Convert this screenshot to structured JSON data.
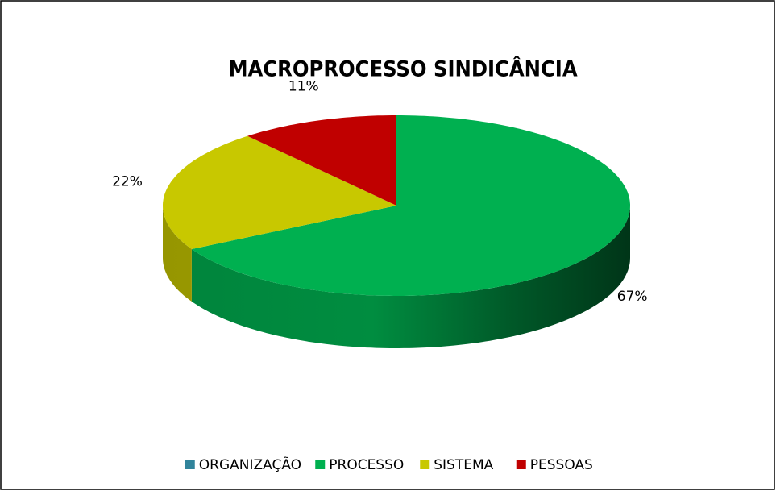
{
  "chart_data": {
    "type": "pie",
    "title": "MACROPROCESSO SINDICÂNCIA",
    "categories": [
      "ORGANIZAÇÃO",
      "PROCESSO",
      "SISTEMA",
      "PESSOAS"
    ],
    "values": [
      0,
      67,
      22,
      11
    ],
    "value_labels": [
      null,
      "67%",
      "22%",
      "11%"
    ],
    "colors": [
      "#31849b",
      "#00b050",
      "#c8c800",
      "#c00000"
    ],
    "legend": "bottom"
  }
}
